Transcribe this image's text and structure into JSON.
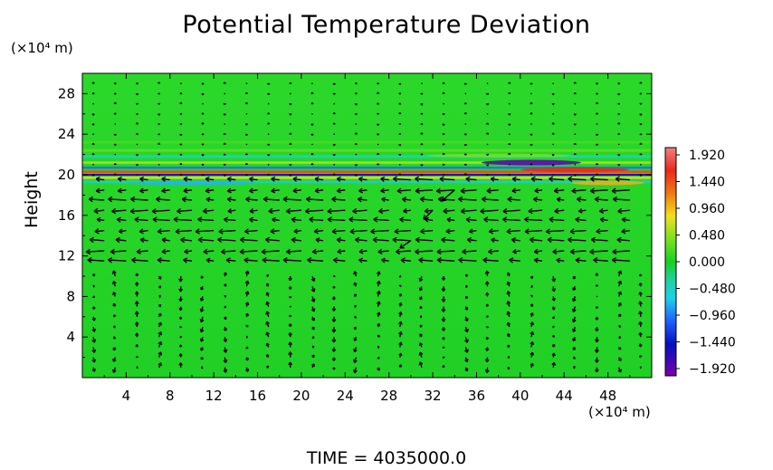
{
  "chart_data": {
    "type": "heatmap",
    "title": "Potential Temperature Deviation",
    "ylabel": "Height",
    "y_unit_label": "(×10⁴ m)",
    "x_unit_label": "(×10⁴ m)",
    "footer": "TIME  =  4035000.0",
    "xlim": [
      0,
      52
    ],
    "ylim": [
      0,
      30
    ],
    "x_ticks": [
      "4",
      "8",
      "12",
      "16",
      "20",
      "24",
      "28",
      "32",
      "36",
      "40",
      "44",
      "48"
    ],
    "y_ticks": [
      "4",
      "8",
      "12",
      "16",
      "20",
      "24",
      "28"
    ],
    "x_tick_values": [
      4,
      8,
      12,
      16,
      20,
      24,
      28,
      32,
      36,
      40,
      44,
      48
    ],
    "y_tick_values": [
      4,
      8,
      12,
      16,
      20,
      24,
      28
    ],
    "colorbar": {
      "labels": [
        "1.920",
        "1.440",
        "0.960",
        "0.480",
        "0.000",
        "−0.480",
        "−0.960",
        "−1.440",
        "−1.920"
      ],
      "values": [
        1.92,
        1.44,
        0.96,
        0.48,
        0.0,
        -0.48,
        -0.96,
        -1.44,
        -1.92
      ],
      "range": [
        -1.92,
        1.92
      ]
    },
    "field_description_layers": [
      {
        "height": 20.5,
        "value": 1.6
      },
      {
        "height": 20.0,
        "value": -1.5
      },
      {
        "height": 19.5,
        "value": 0.9
      },
      {
        "height": 21.5,
        "value": -0.5
      },
      {
        "height": 22.5,
        "value": 0.4
      }
    ],
    "wind_field": {
      "strong_jet_heights": [
        11.5,
        12.5,
        13.5,
        14.5,
        15.5,
        16.5,
        17.5,
        18.5,
        19.5
      ],
      "direction": "westward",
      "background_vectors": "small vertical oscillations below 11 and above 21"
    }
  }
}
